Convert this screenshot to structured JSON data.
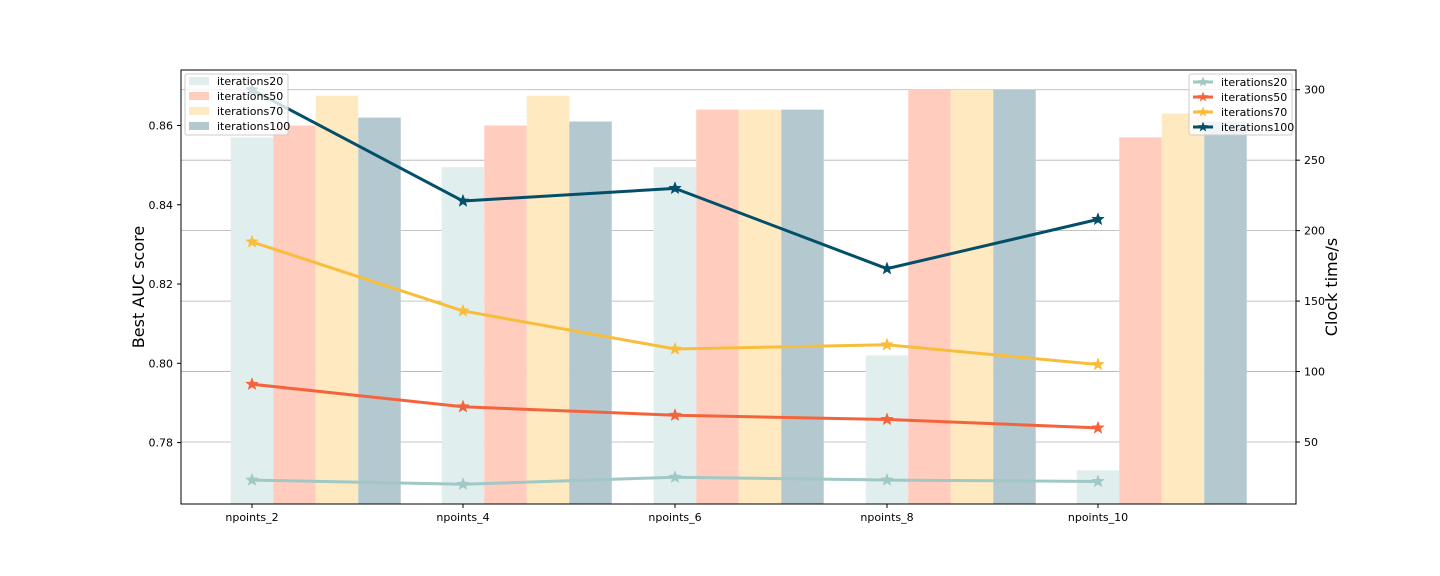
{
  "chart_data": {
    "type": "bar+line",
    "categories": [
      "npoints_2",
      "npoints_4",
      "npoints_6",
      "npoints_8",
      "npoints_10"
    ],
    "bar_series": [
      {
        "name": "iterations20",
        "color": "#e1eeee",
        "values": [
          0.857,
          0.8495,
          0.8495,
          0.802,
          0.773
        ]
      },
      {
        "name": "iterations50",
        "color": "#ffccbe",
        "values": [
          0.86,
          0.86,
          0.864,
          0.869,
          0.857
        ]
      },
      {
        "name": "iterations70",
        "color": "#ffe9c1",
        "values": [
          0.8675,
          0.8675,
          0.864,
          0.869,
          0.863
        ]
      },
      {
        "name": "iterations100",
        "color": "#b3c9cf",
        "values": [
          0.862,
          0.861,
          0.864,
          0.869,
          0.861
        ]
      }
    ],
    "line_series": [
      {
        "name": "iterations20",
        "color": "#a0c8c4",
        "values": [
          23,
          20,
          25,
          23,
          22
        ]
      },
      {
        "name": "iterations50",
        "color": "#f4643c",
        "values": [
          91,
          75,
          69,
          66,
          60
        ]
      },
      {
        "name": "iterations70",
        "color": "#f8bd3a",
        "values": [
          192,
          143,
          116,
          119,
          105
        ]
      },
      {
        "name": "iterations100",
        "color": "#034f6a",
        "values": [
          300,
          221,
          230,
          173,
          208
        ]
      }
    ],
    "ylabel_left": "Best AUC score",
    "ylabel_right": "Clock time/s",
    "ylim_left": [
      0.7645,
      0.874
    ],
    "ylim_right": [
      6,
      314
    ],
    "yticks_left": [
      "0.78",
      "0.80",
      "0.82",
      "0.84",
      "0.86"
    ],
    "yticks_right": [
      "50",
      "100",
      "150",
      "200",
      "250",
      "300"
    ],
    "grid": "horizontal, right axis",
    "legend_bars": "top-left",
    "legend_lines": "top-right"
  }
}
